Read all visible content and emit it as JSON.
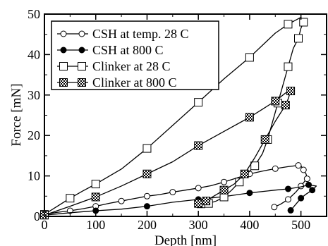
{
  "chart_data": {
    "type": "line",
    "title": "",
    "xlabel": "Depth [nm]",
    "ylabel": "Force [mN]",
    "xlim": [
      0,
      550
    ],
    "ylim": [
      0,
      50
    ],
    "xticks": [
      "0",
      "100",
      "200",
      "300",
      "400",
      "500"
    ],
    "yticks": [
      "0",
      "10",
      "20",
      "30",
      "40",
      "50"
    ],
    "grid": false,
    "legend_position": "top-left",
    "series": [
      {
        "name": "CSH at temp. 28 C",
        "marker": "open-circle",
        "color": "#000000",
        "x": [
          0,
          25,
          50,
          75,
          100,
          125,
          150,
          175,
          200,
          225,
          250,
          275,
          300,
          325,
          350,
          375,
          400,
          425,
          450,
          475,
          495,
          500,
          505,
          510,
          512,
          508,
          500,
          490,
          475,
          460,
          448
        ],
        "y": [
          0.5,
          1,
          1.4,
          1.9,
          2.5,
          3.2,
          3.8,
          4.4,
          5,
          5.4,
          6,
          6.5,
          7,
          7.6,
          8.5,
          9.5,
          10.5,
          11.2,
          11.8,
          12.3,
          12.6,
          12.5,
          11.5,
          10.5,
          9.3,
          8.8,
          7.5,
          6,
          4.2,
          3,
          2.3
        ]
      },
      {
        "name": "CSH at 800 C",
        "marker": "filled-circle",
        "color": "#000000",
        "x": [
          0,
          50,
          100,
          150,
          200,
          250,
          300,
          350,
          400,
          450,
          475,
          500,
          515,
          530,
          522,
          510,
          500,
          490,
          480
        ],
        "y": [
          0.3,
          0.9,
          1.4,
          1.8,
          2.5,
          3.5,
          4.2,
          4.9,
          5.8,
          6.5,
          6.8,
          7.3,
          7.8,
          7.5,
          6.5,
          5.5,
          4.5,
          3,
          1.5
        ]
      },
      {
        "name": "Clinker at 28 C",
        "marker": "open-square",
        "color": "#000000",
        "x": [
          0,
          25,
          50,
          75,
          100,
          150,
          200,
          250,
          300,
          350,
          400,
          450,
          475,
          500,
          505,
          500,
          495,
          485,
          475,
          465,
          455,
          445,
          435,
          425,
          410,
          395,
          380,
          365,
          350,
          335,
          320,
          310,
          305
        ],
        "y": [
          0.5,
          2.5,
          4.5,
          6.3,
          8,
          11.7,
          16.8,
          22.5,
          28.2,
          34,
          39.3,
          45.3,
          47.5,
          49.2,
          48,
          46.5,
          44,
          41.5,
          37,
          32.5,
          28,
          23.5,
          19,
          15.5,
          12.5,
          10.5,
          8.5,
          6.5,
          4.8,
          3.8,
          3.2,
          3,
          3.1
        ]
      },
      {
        "name": "Clinker at 800 C",
        "marker": "checkered-square",
        "color": "#000000",
        "x": [
          0,
          50,
          100,
          150,
          200,
          250,
          300,
          350,
          400,
          425,
          450,
          470,
          480,
          475,
          470,
          450,
          430,
          410,
          390,
          370,
          350,
          330,
          315,
          300
        ],
        "y": [
          0.3,
          2.5,
          4.8,
          7.5,
          10.5,
          13.5,
          17.5,
          21,
          24.5,
          26.5,
          28.5,
          30.5,
          31,
          29,
          27.5,
          23.5,
          19,
          14.5,
          10.5,
          8,
          6.5,
          5,
          3.8,
          3.2
        ]
      }
    ]
  }
}
